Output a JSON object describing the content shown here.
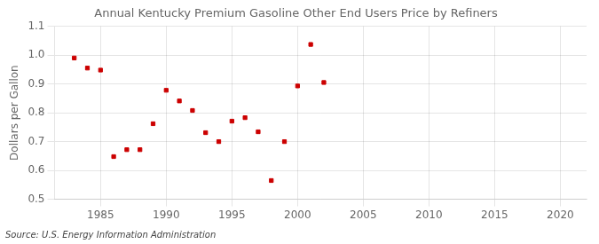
{
  "chart_data": {
    "type": "scatter",
    "title": "Annual Kentucky Premium Gasoline Other End Users Price by Refiners",
    "ylabel": "Dollars per Gallon",
    "annotation": "Source: U.S. Energy Information Administration",
    "color": "#cc0000",
    "marker": "square",
    "grid": true,
    "xlim": [
      1981.5,
      2022
    ],
    "ylim": [
      0.5,
      1.1
    ],
    "xticks": [
      1985,
      1990,
      1995,
      2000,
      2005,
      2010,
      2015,
      2020
    ],
    "yticks": [
      0.5,
      0.6,
      0.7,
      0.8,
      0.9,
      {
        "value": 1.0,
        "label": "1.0"
      },
      1.1
    ],
    "x": [
      1983,
      1984,
      1985,
      1986,
      1987,
      1988,
      1989,
      1990,
      1991,
      1992,
      1993,
      1994,
      1995,
      1996,
      1997,
      1998,
      1999,
      2000,
      2001,
      2002
    ],
    "values": [
      0.99,
      0.955,
      0.948,
      0.648,
      0.672,
      0.672,
      0.762,
      0.878,
      0.841,
      0.808,
      0.731,
      0.7,
      0.771,
      0.783,
      0.734,
      0.565,
      0.7,
      0.893,
      1.037,
      0.905
    ]
  }
}
